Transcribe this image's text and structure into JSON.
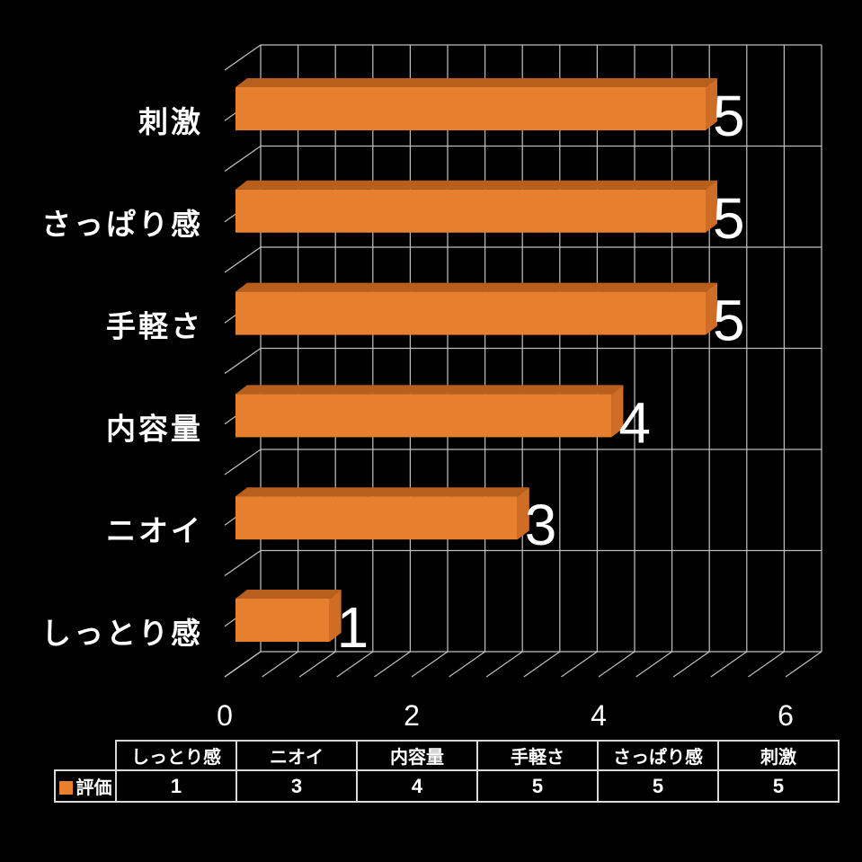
{
  "chart_data": {
    "type": "bar",
    "orientation": "horizontal-3d",
    "title": "",
    "categories": [
      "しっとり感",
      "ニオイ",
      "内容量",
      "手軽さ",
      "さっぱり感",
      "刺激"
    ],
    "series": [
      {
        "name": "評価",
        "values": [
          1,
          3,
          4,
          5,
          5,
          5
        ]
      }
    ],
    "row_order_top_to_bottom": [
      "刺激",
      "さっぱり感",
      "手軽さ",
      "内容量",
      "ニオイ",
      "しっとり感"
    ],
    "value_labels_shown": true,
    "x_ticks": [
      "0",
      "2",
      "4",
      "6"
    ],
    "xlim": [
      0,
      6.4
    ],
    "grid": true,
    "legend_position": "bottom-table",
    "background_color": "#000000",
    "grid_color": "#c6c6c6",
    "text_color": "#ffffff",
    "bar_front_color": "#e6802e",
    "bar_top_color": "#b95f1e",
    "bar_side_color": "#cf6c26"
  },
  "table": {
    "legend_label": "評価",
    "legend_swatch_color": "#e6802e",
    "columns": [
      "しっとり感",
      "ニオイ",
      "内容量",
      "手軽さ",
      "さっぱり感",
      "刺激"
    ],
    "values": [
      "1",
      "3",
      "4",
      "5",
      "5",
      "5"
    ]
  }
}
